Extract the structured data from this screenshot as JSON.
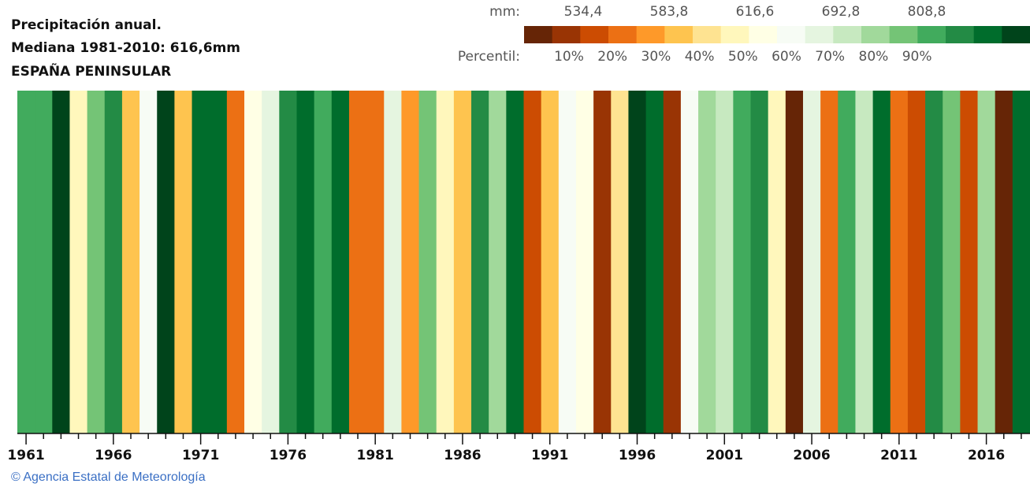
{
  "chart_data": {
    "type": "stripes",
    "title": [
      "Precipitación anual.",
      "Mediana 1981-2010: 616,6mm",
      "ESPAÑA PENINSULAR"
    ],
    "legend_mm_label": "mm:",
    "legend_mm": [
      "534,4",
      "583,8",
      "616,6",
      "692,8",
      "808,8"
    ],
    "legend_percentile_label": "Percentil:",
    "legend_percentiles": [
      "10%",
      "20%",
      "30%",
      "40%",
      "50%",
      "60%",
      "70%",
      "80%",
      "90%"
    ],
    "legend_colors": [
      "#662506",
      "#993404",
      "#cc4c02",
      "#ec7014",
      "#fe9929",
      "#fec44f",
      "#fee391",
      "#fff7bc",
      "#ffffe5",
      "#f7fcf5",
      "#e5f5e0",
      "#c7e9c0",
      "#a1d99b",
      "#74c476",
      "#41ab5d",
      "#238b45",
      "#006d2c",
      "#00441b"
    ],
    "categories": [
      "1961",
      null,
      null,
      null,
      null,
      "1966",
      null,
      null,
      null,
      null,
      "1971",
      null,
      null,
      null,
      null,
      "1976",
      null,
      null,
      null,
      null,
      "1981",
      null,
      null,
      null,
      null,
      "1986",
      null,
      null,
      null,
      null,
      "1991",
      null,
      null,
      null,
      null,
      "1996",
      null,
      null,
      null,
      null,
      "2001",
      null,
      null,
      null,
      null,
      "2006",
      null,
      null,
      null,
      null,
      "2011",
      null,
      null,
      null,
      null,
      "2016",
      null,
      null
    ],
    "colors": [
      "#41ab5d",
      "#41ab5d",
      "#00441b",
      "#fff7bc",
      "#74c476",
      "#238b45",
      "#fec44f",
      "#f7fcf5",
      "#00441b",
      "#fec44f",
      "#006d2c",
      "#006d2c",
      "#ec7014",
      "#ffffe5",
      "#e5f5e0",
      "#238b45",
      "#006d2c",
      "#41ab5d",
      "#006d2c",
      "#ec7014",
      "#ec7014",
      "#e5f5e0",
      "#fe9929",
      "#74c476",
      "#fff7bc",
      "#fec44f",
      "#238b45",
      "#a1d99b",
      "#006d2c",
      "#cc4c02",
      "#fec44f",
      "#f7fcf5",
      "#ffffe5",
      "#993404",
      "#fee391",
      "#00441b",
      "#006d2c",
      "#993404",
      "#f7fcf5",
      "#a1d99b",
      "#c7e9c0",
      "#41ab5d",
      "#238b45",
      "#fff7bc",
      "#662506",
      "#e5f5e0",
      "#ec7014",
      "#41ab5d",
      "#c7e9c0",
      "#006d2c",
      "#ec7014",
      "#cc4c02",
      "#238b45",
      "#74c476",
      "#cc4c02",
      "#a1d99b",
      "#662506",
      "#006d2c"
    ],
    "footer": "© Agencia Estatal de Meteorología"
  }
}
